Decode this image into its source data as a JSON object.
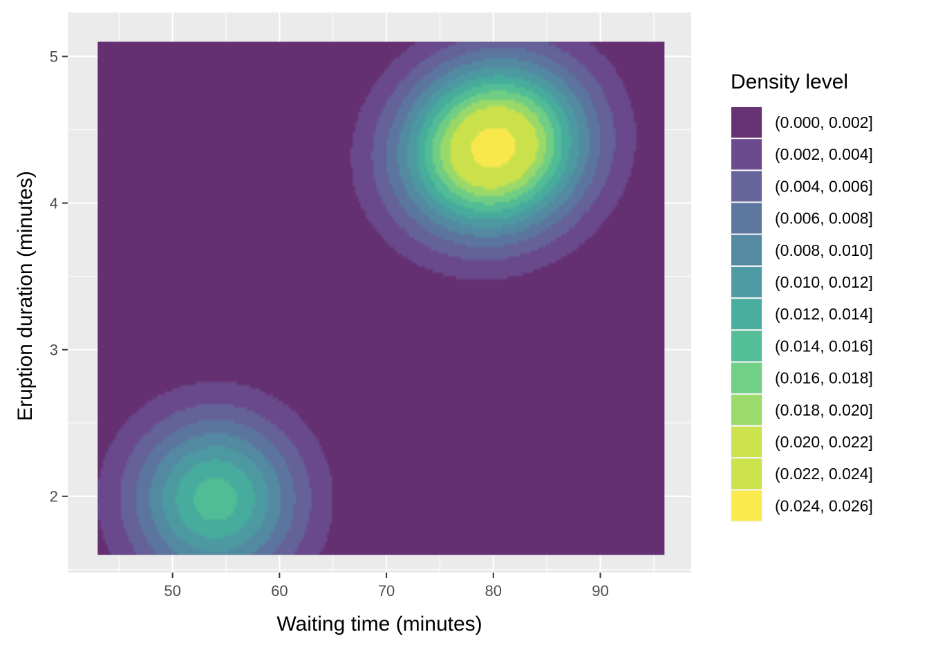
{
  "chart_data": {
    "type": "contour",
    "xlabel": "Waiting time (minutes)",
    "ylabel": "Eruption duration (minutes)",
    "xlim": [
      40.2,
      98.5
    ],
    "ylim": [
      1.48,
      5.3
    ],
    "x_ticks": [
      50,
      60,
      70,
      80,
      90
    ],
    "y_ticks": [
      2,
      3,
      4,
      5
    ],
    "data_extent": {
      "x": [
        43,
        96
      ],
      "y": [
        1.6,
        5.1
      ]
    },
    "grid": true,
    "panel_background": "#ebebeb",
    "legend": {
      "title": "Density level",
      "position": "right",
      "entries": [
        {
          "label": "(0.000, 0.002]",
          "color": "#440154"
        },
        {
          "label": "(0.002, 0.004]",
          "color": "#482173"
        },
        {
          "label": "(0.004, 0.006]",
          "color": "#433E85"
        },
        {
          "label": "(0.006, 0.008]",
          "color": "#38588C"
        },
        {
          "label": "(0.008, 0.010]",
          "color": "#2D708E"
        },
        {
          "label": "(0.010, 0.012]",
          "color": "#25858E"
        },
        {
          "label": "(0.012, 0.014]",
          "color": "#1E9B8A"
        },
        {
          "label": "(0.014, 0.016]",
          "color": "#2BB07F"
        },
        {
          "label": "(0.016, 0.018]",
          "color": "#51C56A"
        },
        {
          "label": "(0.018, 0.020]",
          "color": "#85D54A"
        },
        {
          "label": "(0.020, 0.022]",
          "color": "#C2DF23"
        },
        {
          "label": "(0.022, 0.024]",
          "color": "#C2DF23"
        },
        {
          "label": "(0.024, 0.026]",
          "color": "#FDE725"
        }
      ]
    },
    "fill_alpha": 0.8,
    "density_peaks": [
      {
        "x": 80.0,
        "y": 4.38,
        "sd_x": 5.9,
        "sd_y": 0.4,
        "rho": 0.08,
        "peak_density": 0.0255
      },
      {
        "x": 54.0,
        "y": 1.98,
        "sd_x": 5.5,
        "sd_y": 0.4,
        "rho": 0.0,
        "peak_density": 0.015
      }
    ]
  }
}
